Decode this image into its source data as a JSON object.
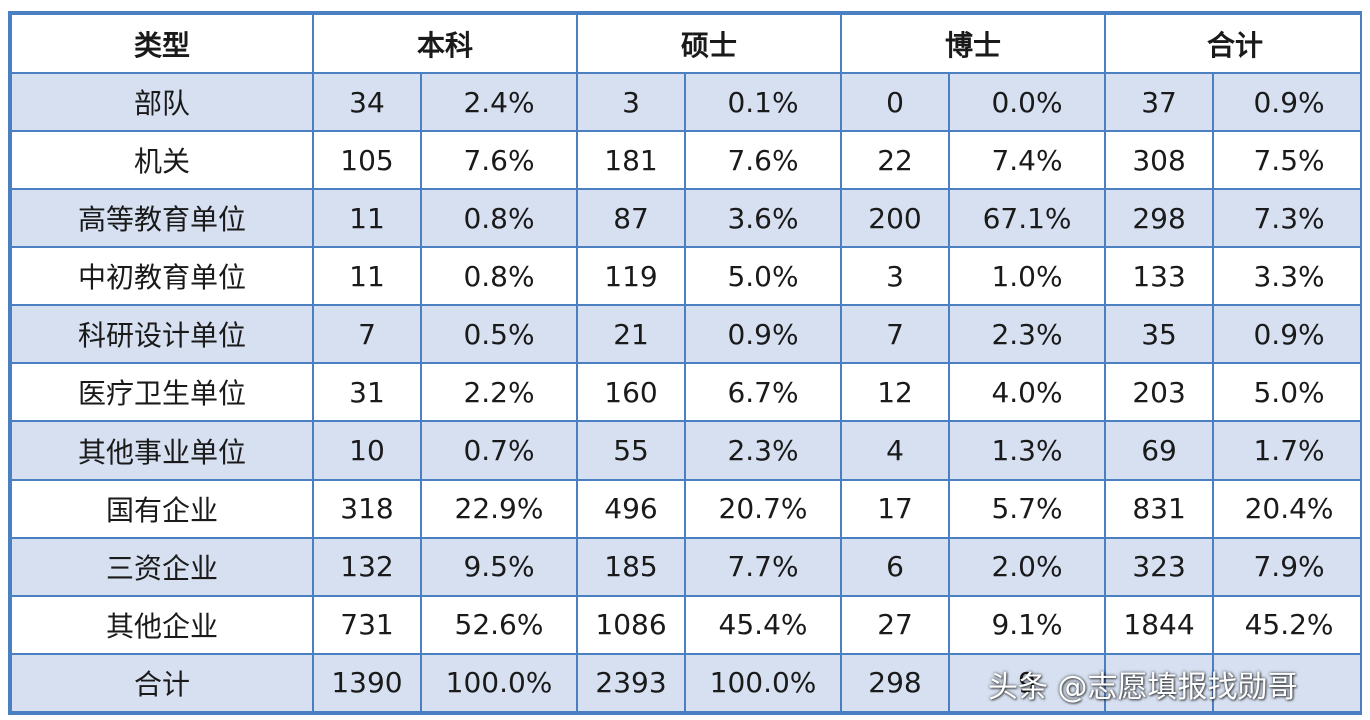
{
  "table": {
    "headers": [
      "类型",
      "本科",
      "硕士",
      "博士",
      "合计"
    ],
    "rows": [
      {
        "type": "部队",
        "cells": [
          "34",
          "2.4%",
          "3",
          "0.1%",
          "0",
          "0.0%",
          "37",
          "0.9%"
        ]
      },
      {
        "type": "机关",
        "cells": [
          "105",
          "7.6%",
          "181",
          "7.6%",
          "22",
          "7.4%",
          "308",
          "7.5%"
        ]
      },
      {
        "type": "高等教育单位",
        "cells": [
          "11",
          "0.8%",
          "87",
          "3.6%",
          "200",
          "67.1%",
          "298",
          "7.3%"
        ]
      },
      {
        "type": "中初教育单位",
        "cells": [
          "11",
          "0.8%",
          "119",
          "5.0%",
          "3",
          "1.0%",
          "133",
          "3.3%"
        ]
      },
      {
        "type": "科研设计单位",
        "cells": [
          "7",
          "0.5%",
          "21",
          "0.9%",
          "7",
          "2.3%",
          "35",
          "0.9%"
        ]
      },
      {
        "type": "医疗卫生单位",
        "cells": [
          "31",
          "2.2%",
          "160",
          "6.7%",
          "12",
          "4.0%",
          "203",
          "5.0%"
        ]
      },
      {
        "type": "其他事业单位",
        "cells": [
          "10",
          "0.7%",
          "55",
          "2.3%",
          "4",
          "1.3%",
          "69",
          "1.7%"
        ]
      },
      {
        "type": "国有企业",
        "cells": [
          "318",
          "22.9%",
          "496",
          "20.7%",
          "17",
          "5.7%",
          "831",
          "20.4%"
        ]
      },
      {
        "type": "三资企业",
        "cells": [
          "132",
          "9.5%",
          "185",
          "7.7%",
          "6",
          "2.0%",
          "323",
          "7.9%"
        ]
      },
      {
        "type": "其他企业",
        "cells": [
          "731",
          "52.6%",
          "1086",
          "45.4%",
          "27",
          "9.1%",
          "1844",
          "45.2%"
        ]
      },
      {
        "type": "合计",
        "cells": [
          "1390",
          "100.0%",
          "2393",
          "100.0%",
          "298",
          "9",
          "",
          ""
        ]
      }
    ]
  },
  "watermark": "头条 @志愿填报找勋哥"
}
